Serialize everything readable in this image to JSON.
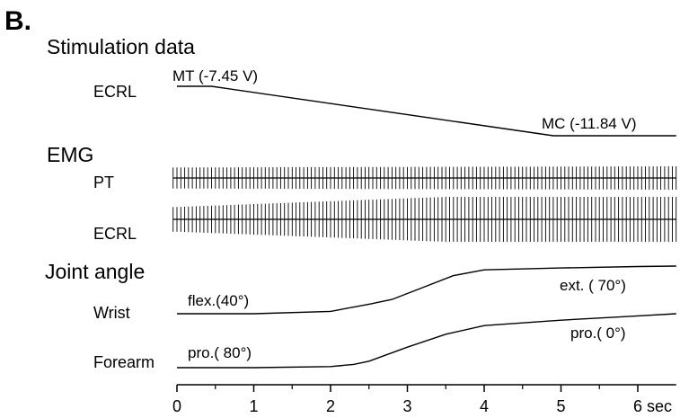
{
  "panel_label": "B.",
  "chart_data": {
    "type": "line",
    "x_unit": "sec",
    "xlim": [
      0,
      6.5
    ],
    "x_ticks": [
      "0",
      "1",
      "2",
      "3",
      "4",
      "5",
      "6 sec"
    ],
    "sections": [
      {
        "heading": "Stimulation data",
        "series": [
          {
            "name": "ECRL",
            "annotations": [
              "MT (-7.45 V)",
              "MC (-11.84 V)"
            ],
            "x": [
              0,
              0.45,
              4.9,
              6.5
            ],
            "y": [
              -7.45,
              -7.45,
              -11.84,
              -11.84
            ],
            "unit": "V"
          }
        ]
      },
      {
        "heading": "EMG",
        "series": [
          {
            "name": "PT",
            "x": [
              0,
              6.5
            ],
            "amplitude": [
              0.9,
              1.0
            ],
            "style": "stimulus-locked bursts"
          },
          {
            "name": "ECRL",
            "x": [
              0,
              3.5,
              6.5
            ],
            "amplitude": [
              0.55,
              1.0,
              1.0
            ],
            "style": "stimulus-locked bursts"
          }
        ]
      },
      {
        "heading": "Joint angle",
        "series": [
          {
            "name": "Wrist",
            "annotations": [
              "flex.(40°)",
              "ext. ( 70°)"
            ],
            "x": [
              0,
              1.0,
              2.0,
              2.5,
              2.8,
              3.2,
              3.6,
              4.0,
              5.0,
              6.0,
              6.5
            ],
            "y": [
              0.0,
              0.0,
              0.05,
              0.2,
              0.3,
              0.55,
              0.8,
              0.92,
              0.96,
              0.99,
              1.0
            ]
          },
          {
            "name": "Forearm",
            "annotations": [
              "pro.( 80°)",
              "pro.( 0°)"
            ],
            "x": [
              0,
              1.0,
              2.0,
              2.3,
              2.5,
              3.0,
              3.5,
              4.0,
              5.0,
              6.0,
              6.5
            ],
            "y": [
              0.0,
              0.0,
              0.02,
              0.06,
              0.12,
              0.38,
              0.62,
              0.78,
              0.88,
              0.96,
              1.0
            ]
          }
        ]
      }
    ]
  }
}
